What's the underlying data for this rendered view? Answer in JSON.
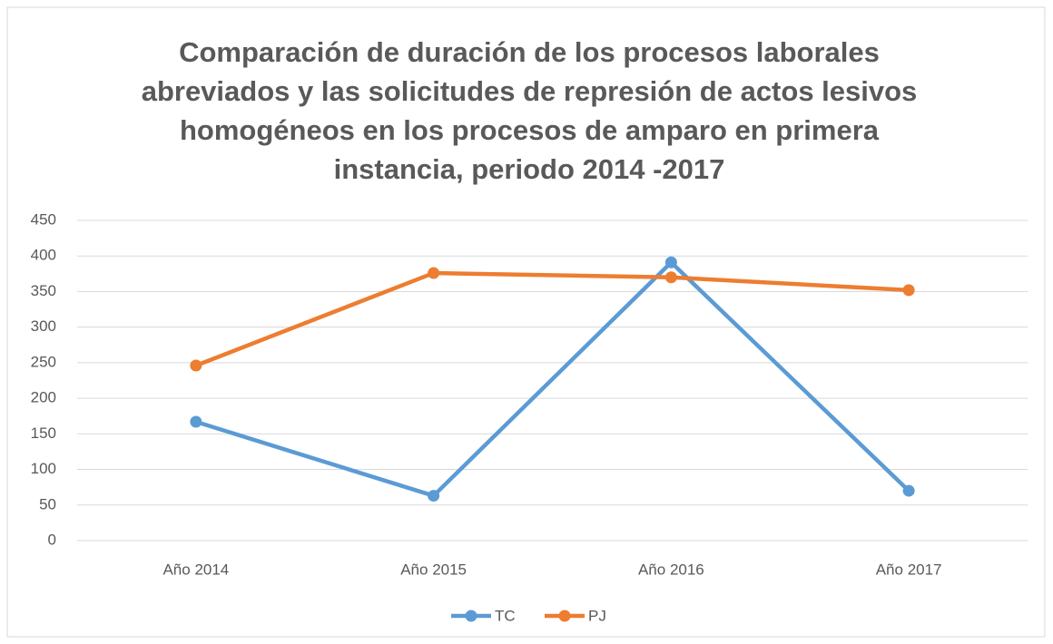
{
  "chart_data": {
    "type": "line",
    "title": [
      "Comparación de duración de los procesos laborales",
      "abreviados y las solicitudes de represión de actos lesivos",
      "homogéneos en los procesos de amparo en primera",
      "instancia, periodo 2014 -2017"
    ],
    "categories": [
      "Año 2014",
      "Año 2015",
      "Año 2016",
      "Año 2017"
    ],
    "series": [
      {
        "name": "TC",
        "color": "#5b9bd5",
        "values": [
          167,
          63,
          391,
          70
        ]
      },
      {
        "name": "PJ",
        "color": "#ed7d31",
        "values": [
          246,
          376,
          370,
          352
        ]
      }
    ],
    "ylim": [
      0,
      450
    ],
    "yticks": [
      0,
      50,
      100,
      150,
      200,
      250,
      300,
      350,
      400,
      450
    ],
    "grid": true,
    "legend": "bottom"
  }
}
